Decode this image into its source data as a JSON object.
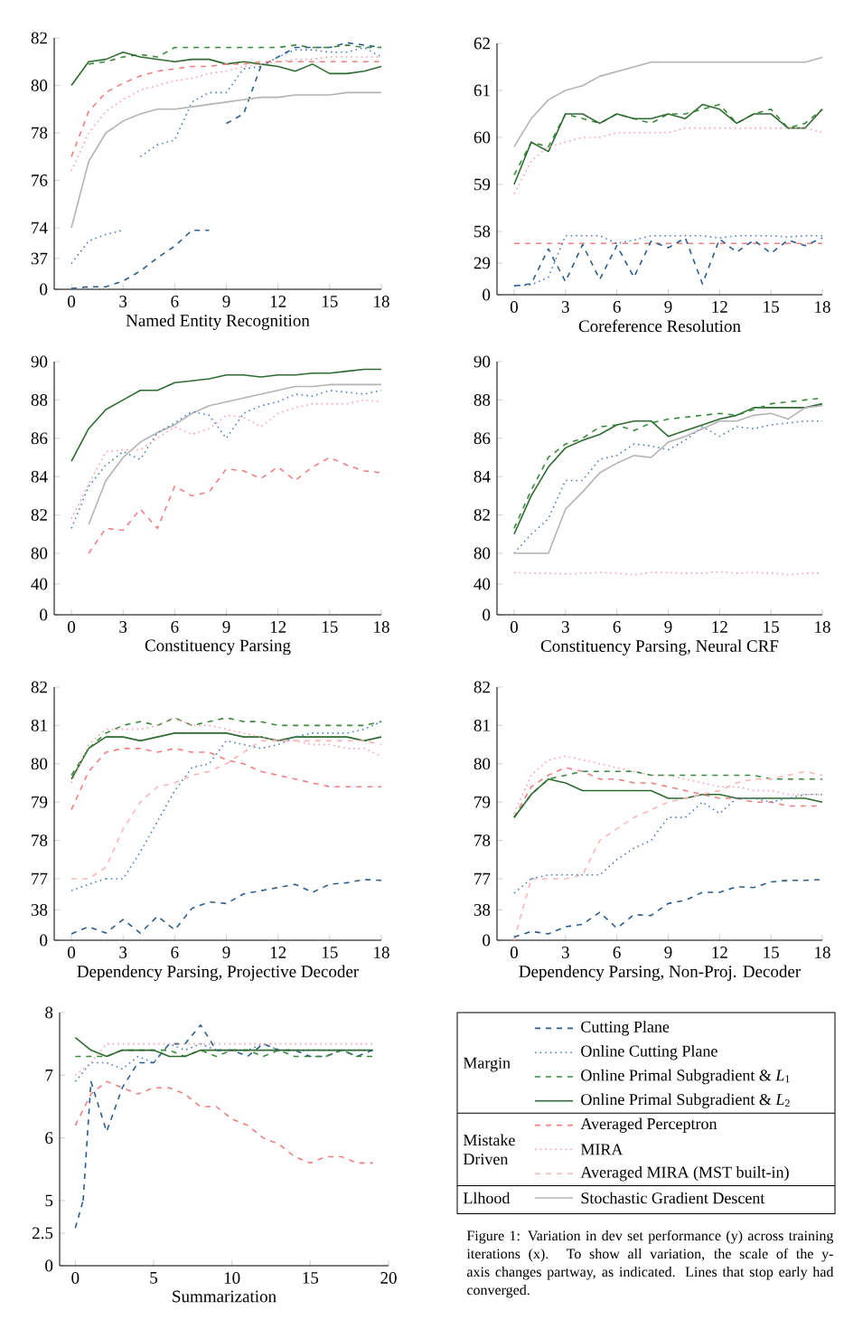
{
  "chart_data": [
    {
      "type": "line",
      "x": [
        0,
        1,
        2,
        3,
        4,
        5,
        6,
        7,
        8,
        9,
        10,
        11,
        12,
        13,
        14,
        15,
        16,
        17,
        18
      ],
      "xlim": [
        -1,
        18
      ],
      "ylim": [
        74,
        82
      ],
      "yticks": [
        74,
        76,
        78,
        80,
        82
      ],
      "tick_labels": "y",
      "series": [
        {
          "color": "#2a5d8c",
          "line_style": "dashed",
          "x": [
            9,
            10,
            11,
            12,
            13,
            14,
            15,
            16,
            17,
            18
          ],
          "values": [
            78.4,
            78.8,
            80.8,
            81.2,
            81.6,
            81.6,
            81.6,
            81.8,
            81.7,
            81.6
          ]
        },
        {
          "color": "#4a80bd",
          "line_style": "dotted",
          "x": [
            4,
            5,
            6,
            7,
            8,
            9,
            10,
            11,
            12,
            13,
            14,
            15,
            16,
            17,
            18
          ],
          "values": [
            77.0,
            77.5,
            77.7,
            79.3,
            79.7,
            79.7,
            80.7,
            80.8,
            81.2,
            81.5,
            81.5,
            81.4,
            81.4,
            81.6,
            81.2
          ]
        },
        {
          "color": "#3a8a3c",
          "line_style": "dashed",
          "x": [
            1,
            2,
            3,
            4,
            5,
            6,
            7,
            8,
            9,
            10,
            11,
            12,
            13,
            14,
            15,
            16,
            17,
            18
          ],
          "values": [
            80.9,
            81.0,
            81.2,
            81.3,
            81.2,
            81.6,
            81.6,
            81.6,
            81.6,
            81.6,
            81.6,
            81.6,
            81.7,
            81.6,
            81.6,
            81.7,
            81.6,
            81.6
          ]
        },
        {
          "color": "#2e6b30",
          "line_style": "solid",
          "values": [
            80.0,
            81.0,
            81.1,
            81.4,
            81.2,
            81.1,
            81.0,
            81.1,
            81.1,
            80.9,
            81.0,
            80.9,
            80.8,
            80.6,
            80.9,
            80.5,
            80.5,
            80.6,
            80.8
          ]
        },
        {
          "color": "#f08080",
          "line_style": "dashed",
          "values": [
            77.0,
            78.9,
            79.7,
            80.1,
            80.4,
            80.6,
            80.7,
            80.8,
            80.8,
            80.9,
            80.9,
            81.0,
            81.0,
            81.0,
            81.0,
            81.0,
            81.0,
            81.0,
            81.0
          ]
        },
        {
          "color": "#f7a0a8",
          "line_style": "dotted",
          "values": [
            76.4,
            78.0,
            78.9,
            79.4,
            79.8,
            80.0,
            80.2,
            80.3,
            80.5,
            80.6,
            80.8,
            80.9,
            81.0,
            81.1,
            81.1,
            81.2,
            81.2,
            81.2,
            81.2
          ]
        },
        {
          "color": "#b3b3b3",
          "line_style": "solid",
          "values": [
            74.0,
            76.8,
            78.0,
            78.5,
            78.8,
            79.0,
            79.0,
            79.1,
            79.2,
            79.3,
            79.4,
            79.5,
            79.5,
            79.6,
            79.6,
            79.6,
            79.7,
            79.7,
            79.7
          ]
        }
      ]
    },
    {
      "type": "line",
      "xlim": [
        -1,
        18
      ],
      "xticks": [
        0,
        3,
        6,
        9,
        12,
        15,
        18
      ],
      "ylim": [
        0,
        74
      ],
      "yticks": [
        0,
        37
      ],
      "xlabel": "Named Entity Recognition",
      "series": [
        {
          "color": "#2a5d8c",
          "line_style": "dashed",
          "x": [
            0,
            1,
            2,
            3,
            4,
            5,
            6,
            7,
            8
          ],
          "values": [
            1,
            3,
            3,
            10,
            22,
            38,
            52,
            71,
            71
          ]
        },
        {
          "color": "#4a80bd",
          "line_style": "dotted",
          "x": [
            0,
            1,
            2,
            3
          ],
          "values": [
            31,
            58,
            66,
            71
          ]
        }
      ]
    },
    {
      "type": "line",
      "x": [
        0,
        1,
        2,
        3,
        4,
        5,
        6,
        7,
        8,
        9,
        10,
        11,
        12,
        13,
        14,
        15,
        16,
        17,
        18
      ],
      "xlim": [
        -1,
        18
      ],
      "ylim": [
        58,
        62
      ],
      "yticks": [
        58,
        59,
        60,
        61,
        62
      ],
      "tick_labels": "y",
      "series": [
        {
          "color": "#b3b3b3",
          "line_style": "solid",
          "values": [
            59.8,
            60.4,
            60.8,
            61.0,
            61.1,
            61.3,
            61.4,
            61.5,
            61.6,
            61.6,
            61.6,
            61.6,
            61.6,
            61.6,
            61.6,
            61.6,
            61.6,
            61.6,
            61.7
          ]
        },
        {
          "color": "#3a8a3c",
          "line_style": "dashed",
          "values": [
            59.2,
            59.9,
            59.8,
            60.5,
            60.4,
            60.3,
            60.5,
            60.4,
            60.3,
            60.5,
            60.5,
            60.6,
            60.7,
            60.3,
            60.5,
            60.6,
            60.2,
            60.3,
            60.6
          ]
        },
        {
          "color": "#2e6b30",
          "line_style": "solid",
          "values": [
            59.0,
            59.9,
            59.7,
            60.5,
            60.5,
            60.3,
            60.5,
            60.4,
            60.4,
            60.5,
            60.4,
            60.7,
            60.6,
            60.3,
            60.5,
            60.5,
            60.2,
            60.2,
            60.6
          ]
        },
        {
          "color": "#f7a0a8",
          "line_style": "dotted",
          "values": [
            58.8,
            59.5,
            59.8,
            59.9,
            60.0,
            60.0,
            60.1,
            60.1,
            60.1,
            60.1,
            60.2,
            60.2,
            60.2,
            60.2,
            60.2,
            60.2,
            60.2,
            60.2,
            60.1
          ]
        }
      ]
    },
    {
      "type": "line",
      "x": [
        0,
        1,
        2,
        3,
        4,
        5,
        6,
        7,
        8,
        9,
        10,
        11,
        12,
        13,
        14,
        15,
        16,
        17,
        18
      ],
      "xlim": [
        -1,
        18
      ],
      "xticks": [
        0,
        3,
        6,
        9,
        12,
        15,
        18
      ],
      "ylim": [
        0,
        58
      ],
      "yticks": [
        0,
        29
      ],
      "xlabel": "Coreference Resolution",
      "series": [
        {
          "color": "#f08080",
          "line_style": "dashed",
          "values": [
            47,
            47,
            47,
            47,
            47,
            47,
            47,
            47,
            47,
            47,
            47,
            47,
            47,
            47,
            47,
            47,
            47,
            47,
            47
          ]
        },
        {
          "color": "#4a80bd",
          "line_style": "dotted",
          "values": [
            8,
            9,
            16,
            54,
            54,
            54,
            47,
            50,
            54,
            54,
            54,
            54,
            52,
            54,
            54,
            54,
            53,
            54,
            54
          ]
        },
        {
          "color": "#2a5d8c",
          "line_style": "dashed",
          "values": [
            8,
            10,
            42,
            12,
            46,
            14,
            45,
            16,
            49,
            43,
            52,
            10,
            51,
            39,
            50,
            38,
            50,
            45,
            52
          ]
        }
      ]
    },
    {
      "type": "line",
      "x": [
        0,
        1,
        2,
        3,
        4,
        5,
        6,
        7,
        8,
        9,
        10,
        11,
        12,
        13,
        14,
        15,
        16,
        17,
        18
      ],
      "xlim": [
        -1,
        18
      ],
      "ylim": [
        80,
        90
      ],
      "yticks": [
        80,
        82,
        84,
        86,
        88,
        90
      ],
      "tick_labels": "y",
      "series": [
        {
          "color": "#2e6b30",
          "line_style": "solid",
          "values": [
            84.8,
            86.5,
            87.5,
            88.0,
            88.5,
            88.5,
            88.9,
            89.0,
            89.1,
            89.3,
            89.3,
            89.2,
            89.3,
            89.3,
            89.4,
            89.4,
            89.5,
            89.6,
            89.6
          ]
        },
        {
          "color": "#b3b3b3",
          "line_style": "solid",
          "x": [
            1,
            2,
            3,
            4,
            5,
            6,
            7,
            8,
            9,
            10,
            11,
            12,
            13,
            14,
            15,
            16,
            17,
            18
          ],
          "values": [
            81.5,
            83.8,
            85.0,
            85.8,
            86.3,
            86.7,
            87.3,
            87.7,
            87.9,
            88.1,
            88.3,
            88.5,
            88.7,
            88.7,
            88.8,
            88.8,
            88.8,
            88.8
          ]
        },
        {
          "color": "#4a80bd",
          "line_style": "dotted",
          "values": [
            81.3,
            83.5,
            84.6,
            85.3,
            84.9,
            86.3,
            86.8,
            87.4,
            87.2,
            86.0,
            87.3,
            87.7,
            87.9,
            88.3,
            88.2,
            88.5,
            88.4,
            88.3,
            88.5
          ]
        },
        {
          "color": "#f7a0a8",
          "line_style": "dotted",
          "values": [
            81.8,
            83.6,
            85.3,
            85.4,
            85.4,
            86.0,
            86.6,
            86.2,
            86.5,
            87.2,
            87.1,
            86.6,
            87.3,
            87.6,
            87.8,
            87.8,
            87.8,
            88.0,
            87.9
          ]
        },
        {
          "color": "#f08080",
          "line_style": "dashed",
          "x": [
            1,
            2,
            3,
            4,
            5,
            6,
            7,
            8,
            9,
            10,
            11,
            12,
            13,
            14,
            15,
            16,
            17,
            18
          ],
          "values": [
            80.0,
            81.3,
            81.2,
            82.3,
            81.3,
            83.5,
            83.0,
            83.2,
            84.4,
            84.3,
            83.9,
            84.5,
            83.8,
            84.5,
            85.0,
            84.6,
            84.3,
            84.2
          ]
        }
      ]
    },
    {
      "type": "line",
      "xlim": [
        -1,
        18
      ],
      "xticks": [
        0,
        3,
        6,
        9,
        12,
        15,
        18
      ],
      "ylim": [
        0,
        80
      ],
      "yticks": [
        0,
        40
      ],
      "xlabel": "Constituency Parsing"
    },
    {
      "type": "line",
      "x": [
        0,
        1,
        2,
        3,
        4,
        5,
        6,
        7,
        8,
        9,
        10,
        11,
        12,
        13,
        14,
        15,
        16,
        17,
        18
      ],
      "xlim": [
        -1,
        18
      ],
      "ylim": [
        80,
        90
      ],
      "yticks": [
        80,
        82,
        84,
        86,
        88,
        90
      ],
      "tick_labels": "y",
      "series": [
        {
          "color": "#2e6b30",
          "line_style": "solid",
          "values": [
            81.0,
            83.0,
            84.5,
            85.5,
            85.9,
            86.2,
            86.7,
            86.9,
            86.9,
            86.1,
            86.4,
            86.7,
            87.0,
            87.2,
            87.6,
            87.6,
            87.6,
            87.6,
            87.8
          ]
        },
        {
          "color": "#3a8a3c",
          "line_style": "dashed",
          "values": [
            81.3,
            83.3,
            85.0,
            85.7,
            86.0,
            86.6,
            86.7,
            86.4,
            86.8,
            87.0,
            87.1,
            87.2,
            87.3,
            87.2,
            87.5,
            87.8,
            87.9,
            88.0,
            88.1
          ]
        },
        {
          "color": "#4a80bd",
          "line_style": "dotted",
          "values": [
            80.0,
            81.0,
            81.8,
            83.8,
            83.8,
            84.9,
            85.1,
            85.7,
            85.6,
            85.4,
            85.9,
            86.6,
            86.1,
            86.6,
            86.5,
            86.7,
            86.8,
            86.9,
            86.9
          ]
        },
        {
          "color": "#b3b3b3",
          "line_style": "solid",
          "values": [
            80.0,
            80.0,
            80.0,
            82.3,
            83.2,
            84.2,
            84.7,
            85.1,
            85.0,
            85.8,
            86.1,
            86.5,
            86.9,
            86.9,
            87.2,
            87.3,
            87.0,
            87.6,
            87.7
          ]
        }
      ]
    },
    {
      "type": "line",
      "x": [
        0,
        1,
        2,
        3,
        4,
        5,
        6,
        7,
        8,
        9,
        10,
        11,
        12,
        13,
        14,
        15,
        16,
        17,
        18
      ],
      "xlim": [
        -1,
        18
      ],
      "xticks": [
        0,
        3,
        6,
        9,
        12,
        15,
        18
      ],
      "ylim": [
        0,
        80
      ],
      "yticks": [
        0,
        40
      ],
      "xlabel": "Constituency Parsing, Neural CRF",
      "series": [
        {
          "color": "#f7a0a8",
          "line_style": "dotted",
          "values": [
            55,
            54,
            54,
            53,
            54,
            55,
            54,
            52,
            55,
            55,
            54,
            54,
            56,
            54,
            55,
            54,
            52,
            54,
            54
          ]
        }
      ]
    },
    {
      "type": "line",
      "x": [
        0,
        1,
        2,
        3,
        4,
        5,
        6,
        7,
        8,
        9,
        10,
        11,
        12,
        13,
        14,
        15,
        16,
        17,
        18
      ],
      "xlim": [
        -1,
        18
      ],
      "ylim": [
        77,
        82
      ],
      "yticks": [
        77,
        78,
        79,
        80,
        81,
        82
      ],
      "tick_labels": "y",
      "series": [
        {
          "color": "#2e6b30",
          "line_style": "solid",
          "values": [
            79.6,
            80.4,
            80.7,
            80.7,
            80.6,
            80.7,
            80.8,
            80.8,
            80.8,
            80.8,
            80.7,
            80.7,
            80.6,
            80.7,
            80.7,
            80.7,
            80.7,
            80.6,
            80.7
          ]
        },
        {
          "color": "#3a8a3c",
          "line_style": "dashed",
          "values": [
            79.7,
            80.4,
            80.8,
            81.0,
            81.1,
            81.0,
            81.2,
            81.0,
            81.1,
            81.2,
            81.1,
            81.1,
            81.0,
            81.0,
            81.0,
            81.0,
            81.0,
            81.0,
            81.1
          ]
        },
        {
          "color": "#f7a0a8",
          "line_style": "dotted",
          "values": [
            79.5,
            80.5,
            80.9,
            80.9,
            80.9,
            81.0,
            81.2,
            81.0,
            81.0,
            80.9,
            80.8,
            80.7,
            80.6,
            80.6,
            80.5,
            80.5,
            80.4,
            80.4,
            80.2
          ]
        },
        {
          "color": "#f08080",
          "line_style": "dashed",
          "values": [
            78.8,
            79.8,
            80.3,
            80.4,
            80.4,
            80.3,
            80.4,
            80.3,
            80.3,
            80.1,
            80.0,
            79.8,
            79.7,
            79.6,
            79.5,
            79.4,
            79.4,
            79.4,
            79.4
          ]
        },
        {
          "color": "#f9b8b8",
          "line_style": "dashed",
          "values": [
            77.0,
            77.0,
            77.3,
            78.3,
            79.0,
            79.4,
            79.5,
            79.7,
            79.8,
            80.0,
            80.3,
            80.6,
            80.6,
            80.6,
            80.6,
            80.6,
            80.6,
            80.6,
            80.5
          ]
        },
        {
          "color": "#4a80bd",
          "line_style": "dotted",
          "x": [
            2,
            3,
            4,
            5,
            6,
            7,
            8,
            9,
            10,
            11,
            12,
            13,
            14,
            15,
            16,
            17,
            18
          ],
          "values": [
            77.0,
            77.0,
            77.7,
            78.5,
            79.3,
            79.9,
            80.0,
            80.6,
            80.5,
            80.4,
            80.5,
            80.7,
            80.8,
            80.8,
            80.8,
            80.9,
            81.1
          ]
        }
      ]
    },
    {
      "type": "line",
      "x": [
        0,
        1,
        2,
        3,
        4,
        5,
        6,
        7,
        8,
        9,
        10,
        11,
        12,
        13,
        14,
        15,
        16,
        17,
        18
      ],
      "xlim": [
        -1,
        18
      ],
      "xticks": [
        0,
        3,
        6,
        9,
        12,
        15,
        18
      ],
      "ylim": [
        0,
        77
      ],
      "yticks": [
        0,
        38
      ],
      "xlabel": "Dependency Parsing, Projective Decoder",
      "series": [
        {
          "color": "#4a80bd",
          "line_style": "dotted",
          "x": [
            0,
            1,
            2
          ],
          "values": [
            62,
            70,
            77
          ]
        },
        {
          "color": "#2a5d8c",
          "line_style": "dashed",
          "values": [
            8,
            17,
            9,
            26,
            9,
            30,
            13,
            40,
            48,
            46,
            58,
            62,
            66,
            70,
            60,
            70,
            72,
            76,
            75
          ]
        }
      ]
    },
    {
      "type": "line",
      "x": [
        0,
        1,
        2,
        3,
        4,
        5,
        6,
        7,
        8,
        9,
        10,
        11,
        12,
        13,
        14,
        15,
        16,
        17,
        18
      ],
      "xlim": [
        -1,
        18
      ],
      "ylim": [
        77,
        82
      ],
      "yticks": [
        77,
        78,
        79,
        80,
        81,
        82
      ],
      "tick_labels": "y",
      "series": [
        {
          "color": "#f7a0a8",
          "line_style": "dotted",
          "values": [
            78.7,
            79.7,
            80.1,
            80.2,
            80.1,
            80.0,
            79.9,
            79.8,
            79.7,
            79.7,
            79.6,
            79.5,
            79.4,
            79.4,
            79.3,
            79.3,
            79.2,
            79.2,
            79.2
          ]
        },
        {
          "color": "#f08080",
          "line_style": "dashed",
          "values": [
            78.6,
            79.4,
            79.7,
            79.9,
            79.8,
            79.6,
            79.6,
            79.5,
            79.5,
            79.4,
            79.3,
            79.2,
            79.1,
            79.1,
            79.0,
            79.0,
            78.9,
            78.9,
            78.9
          ]
        },
        {
          "color": "#3a8a3c",
          "line_style": "dashed",
          "values": [
            78.6,
            79.2,
            79.6,
            79.7,
            79.8,
            79.8,
            79.8,
            79.8,
            79.7,
            79.7,
            79.7,
            79.7,
            79.7,
            79.7,
            79.7,
            79.6,
            79.6,
            79.6,
            79.6
          ]
        },
        {
          "color": "#2e6b30",
          "line_style": "solid",
          "values": [
            78.6,
            79.2,
            79.6,
            79.5,
            79.3,
            79.3,
            79.3,
            79.3,
            79.3,
            79.1,
            79.1,
            79.2,
            79.2,
            79.1,
            79.1,
            79.1,
            79.1,
            79.1,
            79.0
          ]
        },
        {
          "color": "#f9b8b8",
          "line_style": "dashed",
          "x": [
            1,
            2,
            3,
            4,
            5,
            6,
            7,
            8,
            9,
            10,
            11,
            12,
            13,
            14,
            15,
            16,
            17,
            18
          ],
          "values": [
            77.0,
            77.0,
            77.0,
            77.1,
            78.0,
            78.3,
            78.6,
            78.8,
            79.0,
            79.1,
            79.2,
            79.3,
            79.5,
            79.6,
            79.6,
            79.7,
            79.8,
            79.7
          ]
        },
        {
          "color": "#4a80bd",
          "line_style": "dotted",
          "x": [
            1,
            2,
            3,
            4,
            5,
            6,
            7,
            8,
            9,
            10,
            11,
            12,
            13,
            14,
            15,
            16,
            17,
            18
          ],
          "values": [
            77.0,
            77.1,
            77.1,
            77.1,
            77.1,
            77.5,
            77.8,
            78.0,
            78.6,
            78.6,
            79.0,
            78.7,
            79.1,
            79.1,
            79.0,
            79.1,
            79.2,
            79.2
          ]
        }
      ]
    },
    {
      "type": "line",
      "x": [
        0,
        1,
        2,
        3,
        4,
        5,
        6,
        7,
        8,
        9,
        10,
        11,
        12,
        13,
        14,
        15,
        16,
        17,
        18
      ],
      "xlim": [
        -1,
        18
      ],
      "xticks": [
        0,
        3,
        6,
        9,
        12,
        15,
        18
      ],
      "ylim": [
        0,
        77
      ],
      "yticks": [
        0,
        38
      ],
      "xlabel": "Dependency Parsing, Non-Proj. Decoder",
      "series": [
        {
          "color": "#f9b8b8",
          "line_style": "dashed",
          "x": [
            0,
            1
          ],
          "values": [
            0,
            77
          ]
        },
        {
          "color": "#4a80bd",
          "line_style": "dotted",
          "x": [
            0,
            1
          ],
          "values": [
            59,
            77
          ]
        },
        {
          "color": "#2a5d8c",
          "line_style": "dashed",
          "values": [
            4,
            11,
            8,
            17,
            20,
            35,
            15,
            32,
            31,
            46,
            50,
            60,
            60,
            67,
            66,
            73,
            75,
            75,
            76
          ]
        }
      ]
    },
    {
      "type": "line",
      "x": [
        0,
        1,
        2,
        3,
        4,
        5,
        6,
        7,
        8,
        9,
        10,
        11,
        12,
        13,
        14,
        15,
        16,
        17,
        18,
        19
      ],
      "xlim": [
        -1,
        20
      ],
      "ylim": [
        5,
        8
      ],
      "yticks": [
        5,
        6,
        7,
        8
      ],
      "tick_labels": "y",
      "legend": "right",
      "annotations": [
        "Margin",
        "Mistake Driven",
        "Llhood",
        "Figure 1: Variation in dev set performance (y) across training iterations (x). To show all variation, the scale of the y-axis changes partway, as indicated. Lines that stop early had converged."
      ],
      "series": [
        {
          "name": "Cutting Plane",
          "color": "#2a5d8c",
          "line_style": "dashed",
          "x": [
            0.5,
            1,
            2,
            3,
            4,
            5,
            6,
            7,
            8,
            9,
            10,
            11,
            12,
            13,
            14,
            15,
            16,
            17,
            18,
            19
          ],
          "values": [
            5.0,
            6.9,
            6.1,
            6.8,
            7.2,
            7.2,
            7.5,
            7.5,
            7.8,
            7.4,
            7.4,
            7.3,
            7.5,
            7.4,
            7.4,
            7.3,
            7.3,
            7.4,
            7.3,
            7.4
          ]
        },
        {
          "name": "Online Cutting Plane",
          "color": "#4a80bd",
          "line_style": "dotted",
          "values": [
            6.9,
            7.2,
            7.2,
            7.1,
            7.3,
            7.2,
            7.5,
            7.4,
            7.5,
            7.4,
            7.4,
            7.4,
            7.5,
            7.4,
            7.4,
            7.4,
            7.4,
            7.4,
            7.4,
            7.4
          ]
        },
        {
          "name": "Online Primal Subgradient & *L*$_{1}$",
          "color": "#3a8a3c",
          "line_style": "dashed",
          "values": [
            7.3,
            7.3,
            7.3,
            7.4,
            7.4,
            7.4,
            7.4,
            7.3,
            7.4,
            7.3,
            7.4,
            7.4,
            7.3,
            7.4,
            7.3,
            7.3,
            7.3,
            7.4,
            7.3,
            7.3
          ]
        },
        {
          "name": "Online Primal Subgradient & *L*$_{2}$",
          "color": "#2e6b30",
          "line_style": "solid",
          "values": [
            7.6,
            7.4,
            7.3,
            7.4,
            7.4,
            7.4,
            7.3,
            7.3,
            7.4,
            7.4,
            7.4,
            7.4,
            7.4,
            7.4,
            7.4,
            7.4,
            7.4,
            7.4,
            7.4,
            7.4
          ]
        },
        {
          "name": "Averaged Perceptron",
          "color": "#f08080",
          "line_style": "dashed",
          "values": [
            6.2,
            6.7,
            6.9,
            6.8,
            6.7,
            6.8,
            6.8,
            6.7,
            6.5,
            6.5,
            6.3,
            6.2,
            6.0,
            5.9,
            5.7,
            5.6,
            5.7,
            5.7,
            5.6,
            5.6
          ]
        },
        {
          "name": "MIRA",
          "color": "#f7a0a8",
          "line_style": "dotted",
          "values": [
            7.0,
            7.2,
            7.5,
            7.5,
            7.5,
            7.5,
            7.5,
            7.5,
            7.5,
            7.5,
            7.5,
            7.5,
            7.5,
            7.5,
            7.5,
            7.5,
            7.5,
            7.5,
            7.5,
            7.5
          ]
        },
        {
          "name": "Averaged MIRA (MST built-in)",
          "color": "#f9b8b8",
          "line_style": "dashed",
          "values": [
            null,
            null,
            null,
            null,
            null,
            null,
            null,
            null,
            null,
            null,
            null,
            null,
            null,
            null,
            null,
            null,
            null,
            null,
            null,
            null
          ]
        },
        {
          "name": "Stochastic Gradient Descent",
          "color": "#b3b3b3",
          "line_style": "solid",
          "values": [
            null,
            null,
            null,
            null,
            null,
            null,
            null,
            null,
            null,
            null,
            null,
            null,
            null,
            null,
            null,
            null,
            null,
            null,
            null,
            null
          ]
        }
      ]
    },
    {
      "type": "line",
      "xlim": [
        -1,
        20
      ],
      "xticks": [
        0,
        5,
        10,
        15,
        20
      ],
      "ylim": [
        0,
        5
      ],
      "yticks": [
        0,
        2.5
      ],
      "xlabel": "Summarization",
      "series": [
        {
          "color": "#2a5d8c",
          "line_style": "dashed",
          "x": [
            0,
            0.5
          ],
          "values": [
            2.9,
            5.0
          ]
        }
      ]
    }
  ]
}
